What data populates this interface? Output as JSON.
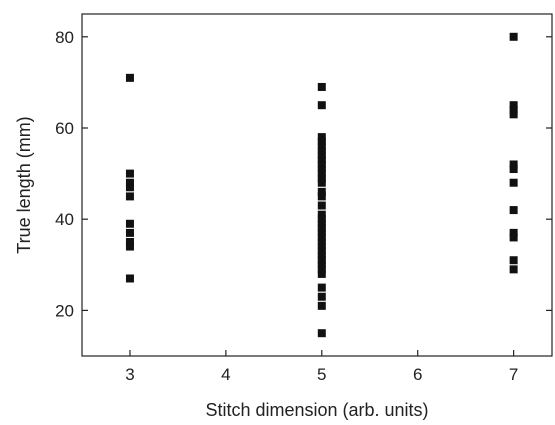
{
  "chart_data": {
    "type": "scatter",
    "title": "",
    "xlabel": "Stitch dimension (arb. units)",
    "ylabel": "True length (mm)",
    "xlim": [
      2.5,
      7.4
    ],
    "ylim": [
      10,
      85
    ],
    "x_ticks": [
      "3",
      "4",
      "5",
      "6",
      "7"
    ],
    "y_ticks": [
      "20",
      "40",
      "60",
      "80"
    ],
    "marker": "square",
    "marker_color": "#111111",
    "grid": false,
    "legend": "none",
    "series": [
      {
        "points": [
          [
            3,
            71
          ],
          [
            3,
            50
          ],
          [
            3,
            48
          ],
          [
            3,
            47
          ],
          [
            3,
            45
          ],
          [
            3,
            39
          ],
          [
            3,
            37
          ],
          [
            3,
            35
          ],
          [
            3,
            34
          ],
          [
            3,
            27
          ],
          [
            5,
            69
          ],
          [
            5,
            65
          ],
          [
            5,
            58
          ],
          [
            5,
            57
          ],
          [
            5,
            56
          ],
          [
            5,
            55
          ],
          [
            5,
            54
          ],
          [
            5,
            53
          ],
          [
            5,
            52
          ],
          [
            5,
            51
          ],
          [
            5,
            50
          ],
          [
            5,
            49
          ],
          [
            5,
            48
          ],
          [
            5,
            46
          ],
          [
            5,
            45
          ],
          [
            5,
            43
          ],
          [
            5,
            41
          ],
          [
            5,
            40
          ],
          [
            5,
            39
          ],
          [
            5,
            38
          ],
          [
            5,
            37
          ],
          [
            5,
            36
          ],
          [
            5,
            35
          ],
          [
            5,
            34
          ],
          [
            5,
            33
          ],
          [
            5,
            32
          ],
          [
            5,
            31
          ],
          [
            5,
            30
          ],
          [
            5,
            29
          ],
          [
            5,
            28
          ],
          [
            5,
            25
          ],
          [
            5,
            23
          ],
          [
            5,
            21
          ],
          [
            5,
            15
          ],
          [
            7,
            80
          ],
          [
            7,
            65
          ],
          [
            7,
            64
          ],
          [
            7,
            63
          ],
          [
            7,
            52
          ],
          [
            7,
            51
          ],
          [
            7,
            48
          ],
          [
            7,
            42
          ],
          [
            7,
            37
          ],
          [
            7,
            36
          ],
          [
            7,
            31
          ],
          [
            7,
            29
          ]
        ]
      }
    ]
  }
}
